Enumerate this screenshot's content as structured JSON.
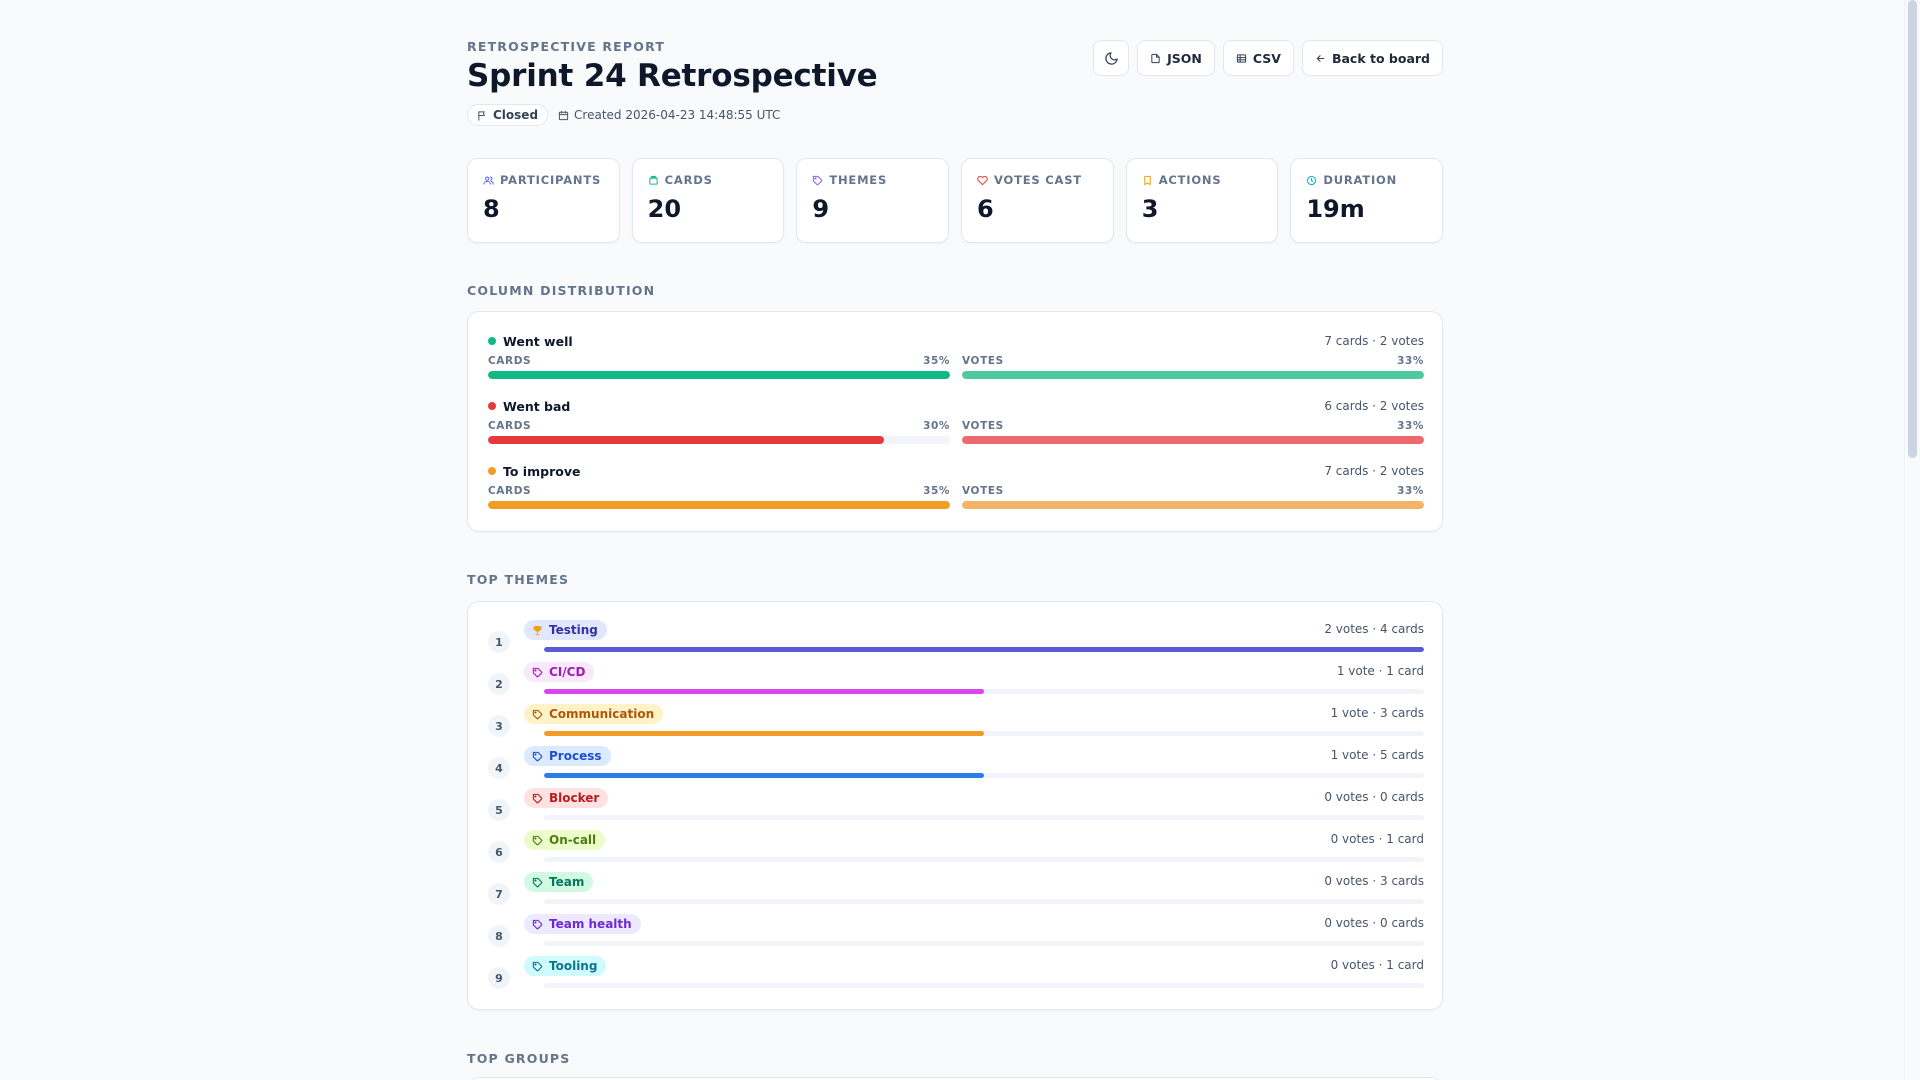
{
  "header": {
    "eyebrow": "RETROSPECTIVE REPORT",
    "title": "Sprint 24 Retrospective",
    "status": "Closed",
    "created": "Created 2026-04-23 14:48:55 UTC"
  },
  "toolbar": {
    "theme_toggle_icon": "moon-icon",
    "json_label": "JSON",
    "csv_label": "CSV",
    "back_label": "Back to board"
  },
  "stats": [
    {
      "label": "PARTICIPANTS",
      "value": "8",
      "icon": "users-icon",
      "color": "#6366f1"
    },
    {
      "label": "CARDS",
      "value": "20",
      "icon": "cards-icon",
      "color": "#10b981"
    },
    {
      "label": "THEMES",
      "value": "9",
      "icon": "tag-icon",
      "color": "#8b5cf6"
    },
    {
      "label": "VOTES CAST",
      "value": "6",
      "icon": "heart-icon",
      "color": "#ef4444"
    },
    {
      "label": "ACTIONS",
      "value": "3",
      "icon": "bookmark-icon",
      "color": "#f59e0b"
    },
    {
      "label": "DURATION",
      "value": "19m",
      "icon": "clock-icon",
      "color": "#06b6d4"
    }
  ],
  "column_distribution": {
    "title": "COLUMN DISTRIBUTION",
    "cards_label": "CARDS",
    "votes_label": "VOTES",
    "columns": [
      {
        "name": "Went well",
        "summary": "7 cards · 2 votes",
        "cards_pct": 35,
        "cards_pct_label": "35%",
        "votes_pct": 33,
        "votes_pct_label": "33%",
        "color": "#10b981",
        "votes_color": "#4cc99d"
      },
      {
        "name": "Went bad",
        "summary": "6 cards · 2 votes",
        "cards_pct": 30,
        "cards_pct_label": "30%",
        "votes_pct": 33,
        "votes_pct_label": "33%",
        "color": "#e5393b",
        "votes_color": "#ec6a6c"
      },
      {
        "name": "To improve",
        "summary": "7 cards · 2 votes",
        "cards_pct": 35,
        "cards_pct_label": "35%",
        "votes_pct": 33,
        "votes_pct_label": "33%",
        "color": "#f29b26",
        "votes_color": "#f2b466"
      }
    ]
  },
  "top_themes": {
    "title": "TOP THEMES",
    "themes": [
      {
        "rank": "1",
        "name": "Testing",
        "summary": "2 votes · 4 cards",
        "share": 1.0,
        "icon": "trophy-icon",
        "color": "#5b5bd6",
        "bg": "#e0e7ff",
        "text": "#3730a3",
        "icon_color": "#f59e0b"
      },
      {
        "rank": "2",
        "name": "CI/CD",
        "summary": "1 vote · 1 card",
        "share": 0.5,
        "icon": "tag-icon",
        "color": "#d946ef",
        "bg": "#fae8ff",
        "text": "#a21caf",
        "icon_color": "#a21caf"
      },
      {
        "rank": "3",
        "name": "Communication",
        "summary": "1 vote · 3 cards",
        "share": 0.5,
        "icon": "tag-icon",
        "color": "#f29b26",
        "bg": "#fef3c7",
        "text": "#b45309",
        "icon_color": "#b45309"
      },
      {
        "rank": "4",
        "name": "Process",
        "summary": "1 vote · 5 cards",
        "share": 0.5,
        "icon": "tag-icon",
        "color": "#2b7de9",
        "bg": "#dbeafe",
        "text": "#1d4ed8",
        "icon_color": "#1d4ed8"
      },
      {
        "rank": "5",
        "name": "Blocker",
        "summary": "0 votes · 0 cards",
        "share": 0,
        "icon": "tag-icon",
        "color": "#ef4444",
        "bg": "#fee2e2",
        "text": "#b91c1c",
        "icon_color": "#b91c1c"
      },
      {
        "rank": "6",
        "name": "On-call",
        "summary": "0 votes · 1 card",
        "share": 0,
        "icon": "tag-icon",
        "color": "#84cc16",
        "bg": "#ecfccb",
        "text": "#4d7c0f",
        "icon_color": "#4d7c0f"
      },
      {
        "rank": "7",
        "name": "Team",
        "summary": "0 votes · 3 cards",
        "share": 0,
        "icon": "tag-icon",
        "color": "#10b981",
        "bg": "#d1fae5",
        "text": "#047857",
        "icon_color": "#047857"
      },
      {
        "rank": "8",
        "name": "Team health",
        "summary": "0 votes · 0 cards",
        "share": 0,
        "icon": "tag-icon",
        "color": "#8b5cf6",
        "bg": "#ede9fe",
        "text": "#6d28d9",
        "icon_color": "#6d28d9"
      },
      {
        "rank": "9",
        "name": "Tooling",
        "summary": "0 votes · 1 card",
        "share": 0,
        "icon": "tag-icon",
        "color": "#06b6d4",
        "bg": "#cffafe",
        "text": "#0e7490",
        "icon_color": "#0e7490"
      }
    ]
  },
  "top_groups": {
    "title": "TOP GROUPS"
  }
}
